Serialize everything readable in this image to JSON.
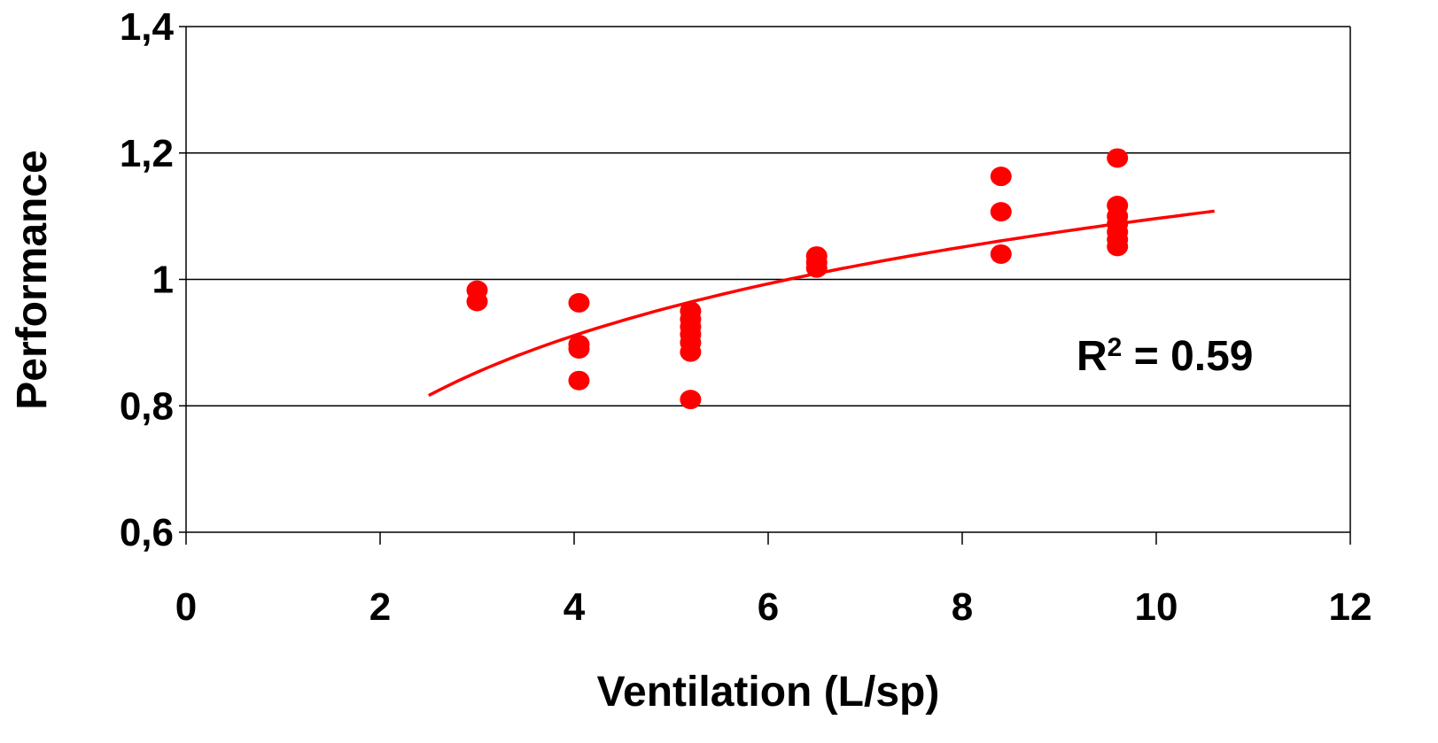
{
  "chart_data": {
    "type": "scatter",
    "title": "",
    "xlabel": "Ventilation (L/sp)",
    "ylabel": "Performance",
    "xlim": [
      0,
      12
    ],
    "ylim": [
      0.6,
      1.4
    ],
    "x_ticks": [
      0,
      2,
      4,
      6,
      8,
      10,
      12
    ],
    "x_tick_labels": [
      "0",
      "2",
      "4",
      "6",
      "8",
      "10",
      "12"
    ],
    "y_ticks": [
      0.6,
      0.8,
      1.0,
      1.2,
      1.4
    ],
    "y_tick_labels": [
      "0,6",
      "0,8",
      "1",
      "1,2",
      "1,4"
    ],
    "grid": "horizontal",
    "point_color": "#ff0000",
    "series": [
      {
        "points": [
          {
            "x": 3.0,
            "y": 0.983
          },
          {
            "x": 3.0,
            "y": 0.965
          },
          {
            "x": 4.05,
            "y": 0.963
          },
          {
            "x": 4.05,
            "y": 0.897
          },
          {
            "x": 4.05,
            "y": 0.89
          },
          {
            "x": 4.05,
            "y": 0.84
          },
          {
            "x": 5.2,
            "y": 0.95
          },
          {
            "x": 5.2,
            "y": 0.937
          },
          {
            "x": 5.2,
            "y": 0.925
          },
          {
            "x": 5.2,
            "y": 0.913
          },
          {
            "x": 5.2,
            "y": 0.9
          },
          {
            "x": 5.2,
            "y": 0.885
          },
          {
            "x": 5.2,
            "y": 0.81
          },
          {
            "x": 6.5,
            "y": 1.037
          },
          {
            "x": 6.5,
            "y": 1.027
          },
          {
            "x": 6.5,
            "y": 1.018
          },
          {
            "x": 8.4,
            "y": 1.163
          },
          {
            "x": 8.4,
            "y": 1.107
          },
          {
            "x": 8.4,
            "y": 1.04
          },
          {
            "x": 9.6,
            "y": 1.192
          },
          {
            "x": 9.6,
            "y": 1.117
          },
          {
            "x": 9.6,
            "y": 1.1
          },
          {
            "x": 9.6,
            "y": 1.088
          },
          {
            "x": 9.6,
            "y": 1.075
          },
          {
            "x": 9.6,
            "y": 1.063
          },
          {
            "x": 9.6,
            "y": 1.052
          }
        ]
      }
    ],
    "trendline": {
      "type": "logarithmic",
      "x_range": [
        2.5,
        10.6
      ],
      "color": "#ff0000",
      "r2_label": "R",
      "r2_superscript": "2",
      "r2_value": " = 0.59"
    }
  }
}
